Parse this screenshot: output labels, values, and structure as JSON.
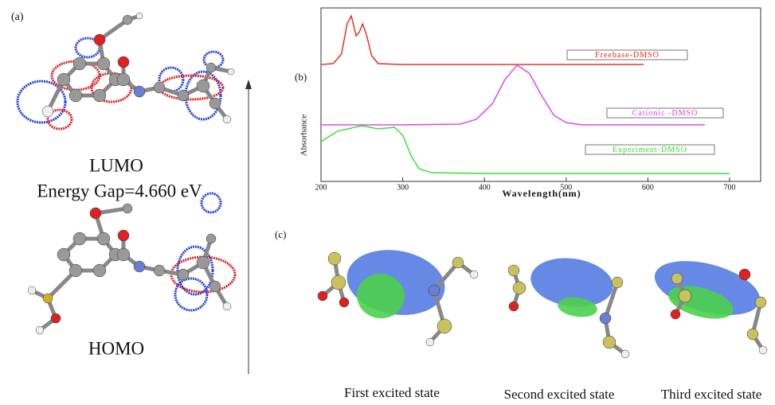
{
  "panel_a": {
    "label": "(a)",
    "lumo": "LUMO",
    "energy_gap": "Energy Gap=4.660 eV",
    "homo": "HOMO"
  },
  "chart_data": {
    "type": "line",
    "panel_label": "(b)",
    "y_label": "Absorbance",
    "x_label": "Wavelength(nm)",
    "xlim": [
      200,
      738
    ],
    "ylim": [
      0,
      1
    ],
    "xticks": [
      200,
      300,
      400,
      500,
      600,
      700
    ],
    "series": [
      {
        "name": "Freebase-DMSO",
        "color": "#e8231c",
        "x": [
          200,
          215,
          225,
          232,
          237,
          243,
          247,
          251,
          256,
          262,
          270,
          300,
          400,
          500,
          595
        ],
        "values": [
          0.674,
          0.679,
          0.734,
          0.908,
          0.954,
          0.839,
          0.862,
          0.908,
          0.839,
          0.725,
          0.679,
          0.674,
          0.674,
          0.674,
          0.674
        ]
      },
      {
        "name": "Cationic -DMSO",
        "color": "#e23ce0",
        "x": [
          200,
          300,
          370,
          390,
          410,
          425,
          440,
          455,
          470,
          485,
          500,
          520,
          600,
          670
        ],
        "values": [
          0.326,
          0.326,
          0.33,
          0.358,
          0.45,
          0.587,
          0.67,
          0.624,
          0.495,
          0.381,
          0.339,
          0.326,
          0.326,
          0.326
        ]
      },
      {
        "name": "Experiment-DMSO",
        "color": "#2ee02e",
        "x": [
          200,
          220,
          250,
          270,
          290,
          300,
          310,
          320,
          335,
          400,
          500,
          600,
          700
        ],
        "values": [
          0.229,
          0.289,
          0.321,
          0.303,
          0.312,
          0.266,
          0.151,
          0.073,
          0.05,
          0.046,
          0.046,
          0.046,
          0.046
        ]
      }
    ]
  },
  "panel_c": {
    "label": "(c)",
    "states": [
      "First excited state",
      "Second excited state",
      "Third excited state"
    ]
  }
}
